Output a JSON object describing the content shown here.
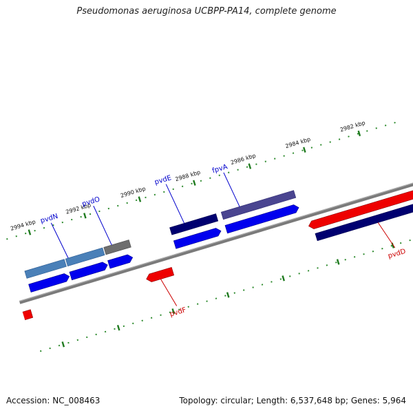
{
  "title": "Pseudomonas aeruginosa UCBPP-PA14, complete genome",
  "footer": {
    "accession": "Accession: NC_008463",
    "summary": "Topology: circular; Length: 6,537,648 bp; Genes: 5,964"
  },
  "map": {
    "scale_ticks": [
      {
        "label": "2994 kbp"
      },
      {
        "label": "2992 kbp"
      },
      {
        "label": "2990 kbp"
      },
      {
        "label": "2988 kbp"
      },
      {
        "label": "2986 kbp"
      },
      {
        "label": "2984 kbp"
      },
      {
        "label": "2982 kbp"
      }
    ],
    "gene_labels": [
      {
        "name": "pvdN",
        "color": "#0000cc"
      },
      {
        "name": "pvdO",
        "color": "#0000cc"
      },
      {
        "name": "pvdE",
        "color": "#0000cc"
      },
      {
        "name": "fpvA",
        "color": "#0000cc"
      },
      {
        "name": "pvdF",
        "color": "#cc0000"
      },
      {
        "name": "pvdD",
        "color": "#cc0000"
      }
    ],
    "colors": {
      "backbone": "#7a7a7a",
      "tick": "#2e8b2e",
      "forward_gene": "#0000ee",
      "reverse_gene": "#ee0000",
      "dark_navy": "#000070",
      "steel_blue": "#4a80b8",
      "slate": "#4a4590",
      "gray": "#6e6e6e"
    }
  }
}
